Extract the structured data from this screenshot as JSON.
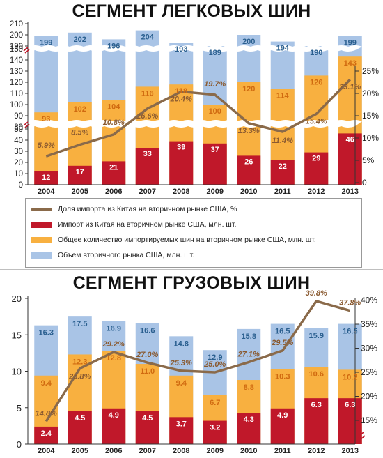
{
  "titles": {
    "passenger": "СЕГМЕНТ ЛЕГКОВЫХ ШИН",
    "truck": "СЕГМЕНТ ГРУЗОВЫХ ШИН"
  },
  "colors": {
    "market": "#a9c4e6",
    "imports": "#f8b040",
    "china": "#c0182a",
    "share": "#8a6a4a",
    "market_label": "#2a5f8f",
    "imports_label": "#d06a10",
    "share_label": "#8a5a30",
    "china_label": "#ffffff"
  },
  "legend": {
    "items": [
      {
        "key": "share",
        "label": "Доля импорта из Китая на вторичном рынке США, %",
        "swatch": "line",
        "color": "#8a6a4a"
      },
      {
        "key": "china",
        "label": "Импорт из Китая на вторичном рынке США, млн. шт.",
        "swatch": "box",
        "color": "#c0182a"
      },
      {
        "key": "imports",
        "label": "Общее количество импортируемых шин на вторичном рынке США, млн. шт.",
        "swatch": "box",
        "color": "#f8b040"
      },
      {
        "key": "market",
        "label": "Объем вторичного рынка США, млн. шт.",
        "swatch": "box",
        "color": "#a9c4e6"
      }
    ]
  },
  "chart_data": [
    {
      "type": "bar",
      "title": "СЕГМЕНТ ЛЕГКОВЫХ ШИН",
      "categories": [
        "2004",
        "2005",
        "2006",
        "2007",
        "2008",
        "2009",
        "2010",
        "2011",
        "2012",
        "2013"
      ],
      "series": [
        {
          "key": "market",
          "values": [
            199,
            202,
            196,
            204,
            193,
            189,
            200,
            194,
            190,
            199
          ]
        },
        {
          "key": "imports",
          "values": [
            93,
            102,
            104,
            116,
            118,
            100,
            120,
            114,
            126,
            143
          ]
        },
        {
          "key": "china",
          "values": [
            12,
            17,
            21,
            33,
            39,
            37,
            26,
            22,
            29,
            46
          ]
        },
        {
          "key": "share",
          "axis": "right",
          "values": [
            5.9,
            8.5,
            10.8,
            16.6,
            20.4,
            19.7,
            13.3,
            11.4,
            15.4,
            23.1
          ],
          "labels": [
            "5.9%",
            "8.5%",
            "10.8%",
            "16.6%",
            "20.4%",
            "19.7%",
            "13.3%",
            "11.4%",
            "15.4%",
            "23.1%"
          ]
        }
      ],
      "y_left_ticks": [
        "0",
        "10",
        "20",
        "30",
        "40",
        "50",
        "80",
        "90",
        "100",
        "110",
        "120",
        "130",
        "140",
        "150",
        "190",
        "200",
        "210"
      ],
      "y_left_broken_axis": [
        [
          0,
          50
        ],
        [
          80,
          150
        ],
        [
          190,
          210
        ]
      ],
      "y_right_ticks": [
        "0",
        "5%",
        "10%",
        "15%",
        "20%",
        "25%"
      ],
      "y_right_range": [
        0,
        25
      ],
      "grid": false
    },
    {
      "type": "bar",
      "title": "СЕГМЕНТ ГРУЗОВЫХ ШИН",
      "categories": [
        "2004",
        "2005",
        "2006",
        "2007",
        "2008",
        "2009",
        "2010",
        "2011",
        "2012",
        "2013"
      ],
      "series": [
        {
          "key": "market",
          "values": [
            16.3,
            17.5,
            16.9,
            16.6,
            14.8,
            12.9,
            15.8,
            16.5,
            15.9,
            16.5
          ]
        },
        {
          "key": "imports",
          "values": [
            9.4,
            12.3,
            12.8,
            11.0,
            9.4,
            6.7,
            8.8,
            10.3,
            10.6,
            10.2
          ]
        },
        {
          "key": "china",
          "values": [
            2.4,
            4.5,
            4.9,
            4.5,
            3.7,
            3.2,
            4.3,
            4.9,
            6.3,
            6.3
          ]
        },
        {
          "key": "share",
          "axis": "right",
          "values": [
            14.8,
            25.8,
            29.2,
            27.0,
            25.3,
            25.0,
            27.1,
            29.5,
            39.8,
            37.8
          ],
          "labels": [
            "14.8%",
            "25.8%",
            "29.2%",
            "27.0%",
            "25.3%",
            "25.0%",
            "27.1%",
            "29.5%",
            "39.8%",
            "37.8%"
          ]
        }
      ],
      "y_left_ticks": [
        "0",
        "5",
        "10",
        "15",
        "20"
      ],
      "y_left_range": [
        0,
        20
      ],
      "y_right_ticks": [
        "15%",
        "20%",
        "25%",
        "30%",
        "35%",
        "40%"
      ],
      "y_right_range": [
        15,
        40
      ],
      "grid": false
    }
  ]
}
